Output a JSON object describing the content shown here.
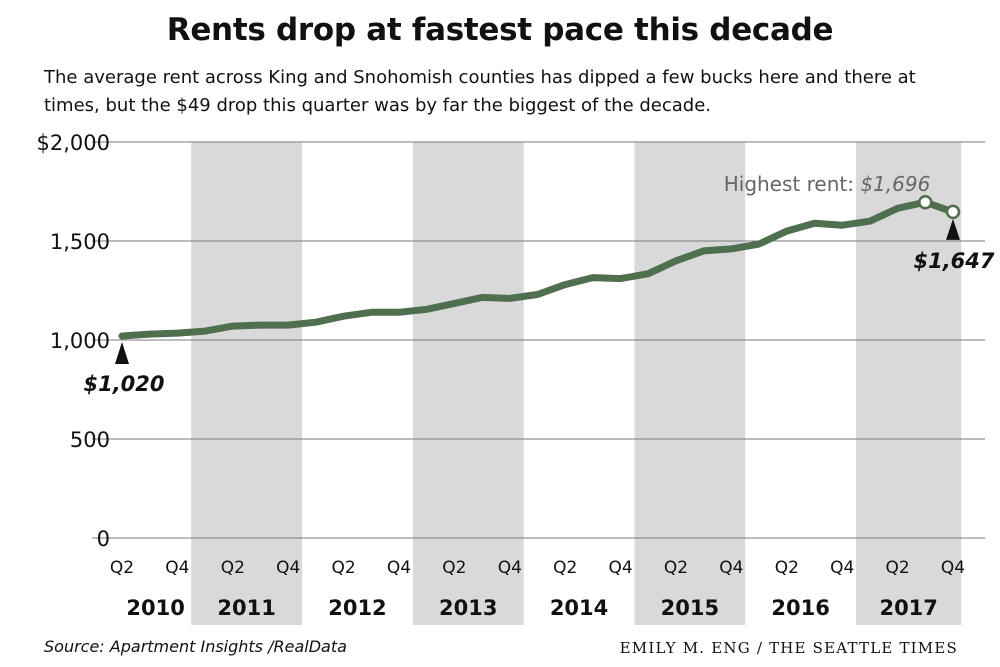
{
  "header": {
    "title": "Rents drop at fastest pace this decade",
    "subtitle": "The average rent across King and Snohomish counties has dipped a few bucks here and there at times, but the $49 drop this quarter was by far the biggest of the decade."
  },
  "footer": {
    "source": "Source: Apartment Insights /RealData",
    "credit": "EMILY M. ENG / THE SEATTLE TIMES"
  },
  "colors": {
    "line": "#506f4f",
    "band": "#d9d9d9",
    "grid": "#7a7a7a",
    "annotation_gray": "#666666"
  },
  "chart_data": {
    "type": "line",
    "title": "Rents drop at fastest pace this decade",
    "xlabel": "",
    "ylabel": "",
    "ylim": [
      0,
      2000
    ],
    "y_ticks": [
      {
        "value": 0,
        "label": "0"
      },
      {
        "value": 500,
        "label": "500"
      },
      {
        "value": 1000,
        "label": "1,000"
      },
      {
        "value": 1500,
        "label": "1,500"
      },
      {
        "value": 2000,
        "label": "$2,000"
      }
    ],
    "grid": true,
    "years": [
      "2010",
      "2011",
      "2012",
      "2013",
      "2014",
      "2015",
      "2016",
      "2017"
    ],
    "shaded_years": [
      "2011",
      "2013",
      "2015",
      "2017"
    ],
    "quarter_tick_labels": [
      "Q2",
      "Q4"
    ],
    "x": [
      "2010 Q2",
      "2010 Q3",
      "2010 Q4",
      "2011 Q1",
      "2011 Q2",
      "2011 Q3",
      "2011 Q4",
      "2012 Q1",
      "2012 Q2",
      "2012 Q3",
      "2012 Q4",
      "2013 Q1",
      "2013 Q2",
      "2013 Q3",
      "2013 Q4",
      "2014 Q1",
      "2014 Q2",
      "2014 Q3",
      "2014 Q4",
      "2015 Q1",
      "2015 Q2",
      "2015 Q3",
      "2015 Q4",
      "2016 Q1",
      "2016 Q2",
      "2016 Q3",
      "2016 Q4",
      "2017 Q1",
      "2017 Q2",
      "2017 Q3",
      "2017 Q4"
    ],
    "series": [
      {
        "values": [
          1020,
          1030,
          1035,
          1045,
          1070,
          1075,
          1075,
          1090,
          1120,
          1140,
          1140,
          1155,
          1185,
          1215,
          1210,
          1230,
          1280,
          1315,
          1310,
          1335,
          1400,
          1450,
          1460,
          1485,
          1550,
          1590,
          1580,
          1600,
          1665,
          1696,
          1647
        ]
      }
    ],
    "annotations": {
      "start": {
        "label": "$1,020",
        "index": 0
      },
      "peak": {
        "label_prefix": "Highest rent: ",
        "label_value": "$1,696",
        "index": 29
      },
      "end": {
        "label": "$1,647",
        "index": 30
      }
    }
  }
}
